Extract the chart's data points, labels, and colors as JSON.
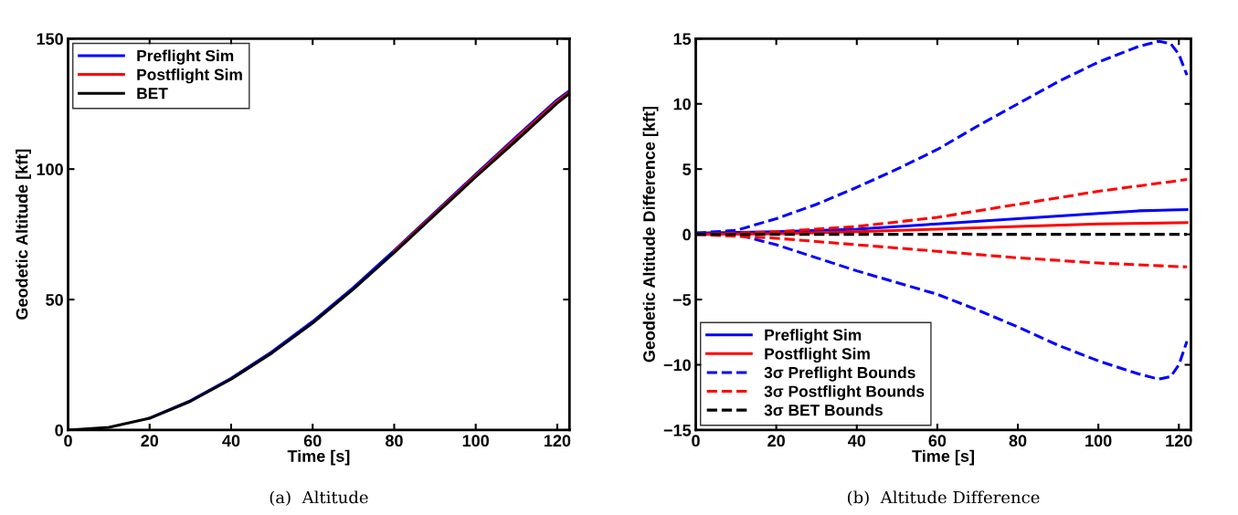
{
  "chart_data": [
    {
      "type": "line",
      "xlabel": "Time [s]",
      "ylabel": "Geodetic Altitude [kft]",
      "annotations": [
        "(a)  Altitude"
      ],
      "xlim": [
        0,
        123
      ],
      "ylim": [
        0,
        150
      ],
      "xticks": [
        0,
        20,
        40,
        60,
        80,
        100,
        120
      ],
      "yticks": [
        0,
        50,
        100,
        150
      ],
      "grid": false,
      "legend": "top left",
      "line_style": "solid",
      "series": [
        {
          "name": "Preflight Sim",
          "color": "#0000ff",
          "x": [
            20,
            30,
            40,
            50,
            60,
            70,
            80,
            90,
            100,
            110,
            120,
            123
          ],
          "values": [
            4.6,
            11.2,
            19.8,
            30,
            41.6,
            54.6,
            68.8,
            83.4,
            98,
            112.4,
            126.6,
            130
          ]
        },
        {
          "name": "Postflight Sim",
          "color": "#ff0000",
          "x": [
            80,
            90,
            100,
            110,
            120,
            123
          ],
          "values": [
            68.4,
            83,
            97.5,
            111.8,
            126,
            129.5
          ]
        },
        {
          "name": "BET",
          "color": "#000000",
          "x": [
            0,
            10,
            20,
            30,
            40,
            50,
            60,
            70,
            80,
            90,
            100,
            110,
            120,
            123
          ],
          "values": [
            0,
            1,
            4.5,
            11,
            19.5,
            29.5,
            41,
            54,
            68,
            82.5,
            97,
            111,
            125.3,
            129
          ]
        }
      ]
    },
    {
      "type": "line",
      "xlabel": "Time [s]",
      "ylabel": "Geodetic Altitude Difference [kft]",
      "annotations": [
        "(b)  Altitude Difference"
      ],
      "xlim": [
        0,
        123
      ],
      "ylim": [
        -15,
        15
      ],
      "xticks": [
        0,
        20,
        40,
        60,
        80,
        100,
        120
      ],
      "yticks": [
        -15,
        -10,
        -5,
        0,
        5,
        10,
        15
      ],
      "grid": false,
      "legend": "bottom left",
      "series": [
        {
          "name": "Preflight Sim",
          "color": "#0000ff",
          "line_style": "solid",
          "x": [
            0,
            20,
            40,
            60,
            80,
            100,
            110,
            122
          ],
          "values": [
            0.1,
            0.2,
            0.4,
            0.8,
            1.2,
            1.6,
            1.8,
            1.9
          ]
        },
        {
          "name": "Postflight Sim",
          "color": "#ff0000",
          "line_style": "solid",
          "x": [
            0,
            20,
            40,
            60,
            80,
            100,
            122
          ],
          "values": [
            0,
            0.05,
            0.2,
            0.4,
            0.6,
            0.8,
            0.9
          ]
        },
        {
          "name": "3σ Preflight Bounds",
          "color": "#0000ff",
          "line_style": "dashed",
          "x": [
            0,
            10,
            20,
            30,
            40,
            50,
            60,
            70,
            80,
            90,
            100,
            110,
            115,
            118,
            120,
            122
          ],
          "values": [
            0.1,
            0.3,
            1.2,
            2.3,
            3.6,
            5,
            6.5,
            8.3,
            10,
            11.7,
            13.2,
            14.4,
            14.8,
            14.6,
            13.8,
            12.2
          ]
        },
        {
          "color": "#0000ff",
          "line_style": "dashed",
          "x": [
            0,
            10,
            20,
            30,
            40,
            50,
            60,
            70,
            80,
            90,
            100,
            110,
            115,
            118,
            120,
            122
          ],
          "values": [
            0.1,
            0,
            -0.8,
            -1.8,
            -2.8,
            -3.7,
            -4.6,
            -5.8,
            -7.1,
            -8.5,
            -9.7,
            -10.7,
            -11.1,
            -10.9,
            -10,
            -8.2
          ]
        },
        {
          "name": "3σ Postflight Bounds",
          "color": "#ff0000",
          "line_style": "dashed",
          "x": [
            0,
            20,
            40,
            60,
            80,
            100,
            122
          ],
          "values": [
            0,
            0.2,
            0.6,
            1.3,
            2.3,
            3.3,
            4.2
          ]
        },
        {
          "color": "#ff0000",
          "line_style": "dashed",
          "x": [
            0,
            20,
            40,
            60,
            80,
            100,
            122
          ],
          "values": [
            0,
            -0.3,
            -0.8,
            -1.3,
            -1.8,
            -2.2,
            -2.5
          ]
        },
        {
          "name": "3σ BET Bounds",
          "color": "#000000",
          "line_style": "dashed",
          "x": [
            0,
            122
          ],
          "values": [
            0,
            0
          ]
        }
      ]
    }
  ]
}
